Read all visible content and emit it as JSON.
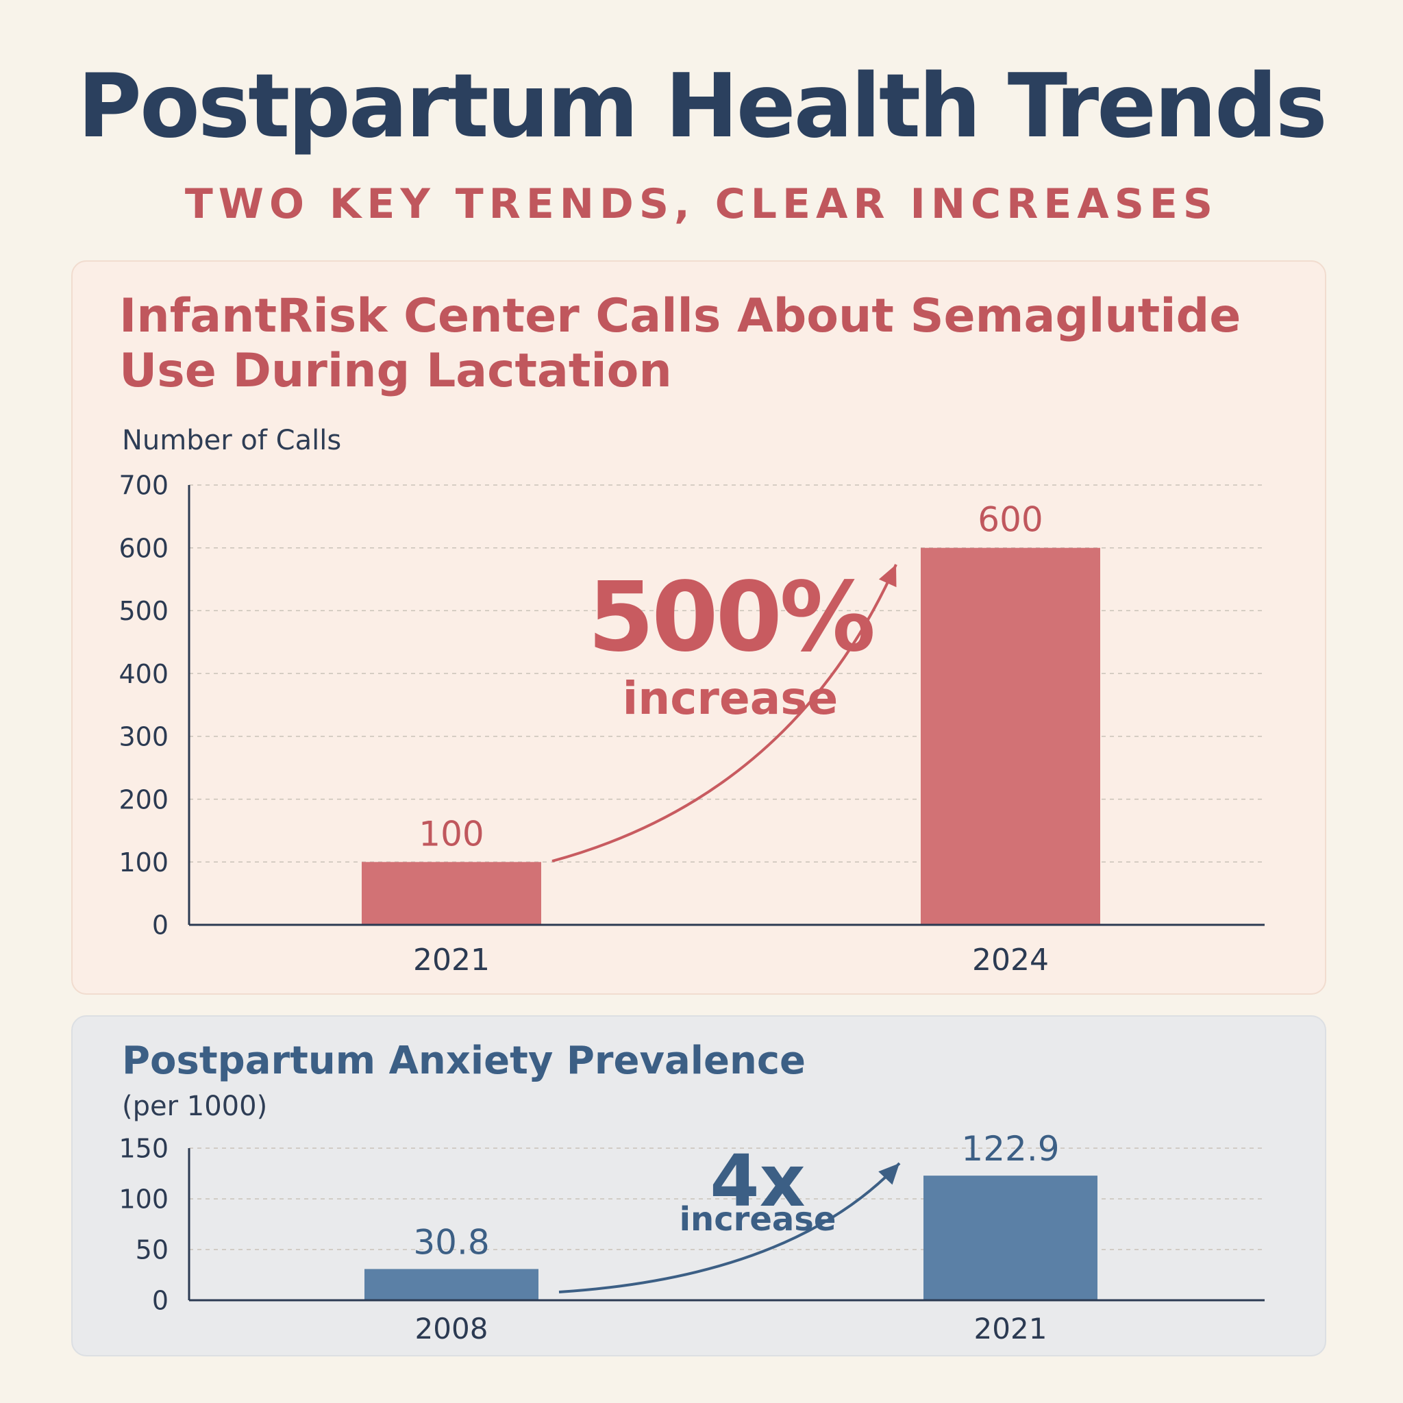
{
  "title": "Postpartum Health Trends",
  "subtitle": "TWO KEY TRENDS, CLEAR INCREASES",
  "chart_data": [
    {
      "type": "bar",
      "title": "InfantRisk Center Calls About Semaglutide Use During Lactation",
      "ylabel": "Number of Calls",
      "xlabel": "",
      "categories": [
        "2021",
        "2024"
      ],
      "values": [
        100,
        600
      ],
      "value_labels": [
        "100",
        "600"
      ],
      "ylim": [
        0,
        700
      ],
      "yticks": [
        0,
        100,
        200,
        300,
        400,
        500,
        600,
        700
      ],
      "grid": true,
      "annotation": {
        "big": "500%",
        "small": "increase"
      },
      "color": "#d27275",
      "axis_color": "#2b3a52"
    },
    {
      "type": "bar",
      "title": "Postpartum Anxiety Prevalence",
      "ylabel": "(per 1000)",
      "xlabel": "",
      "categories": [
        "2008",
        "2021"
      ],
      "values": [
        30.8,
        122.9
      ],
      "value_labels": [
        "30.8",
        "122.9"
      ],
      "ylim": [
        0,
        150
      ],
      "yticks": [
        0,
        50,
        100,
        150
      ],
      "grid": true,
      "annotation": {
        "big": "4x",
        "small": "increase"
      },
      "color": "#5b80a6",
      "axis_color": "#2b3a52"
    }
  ]
}
